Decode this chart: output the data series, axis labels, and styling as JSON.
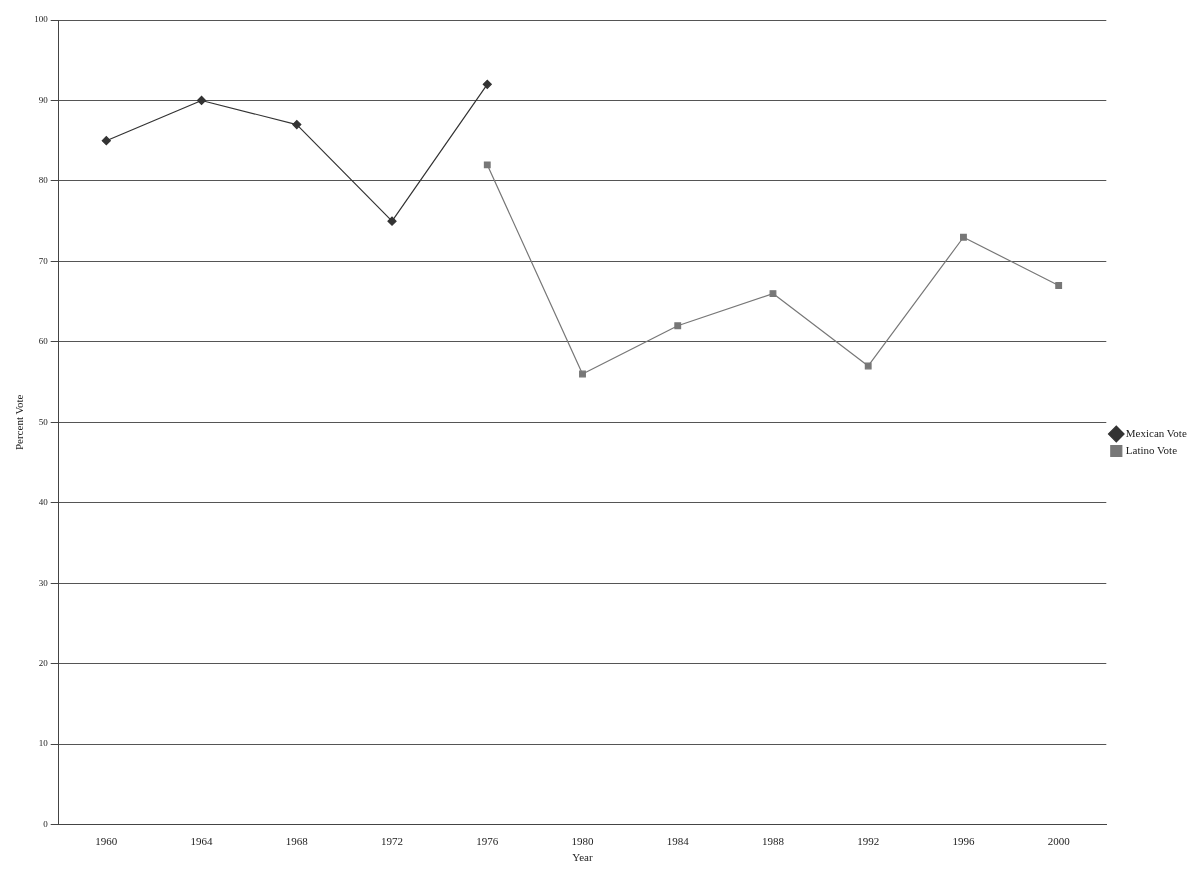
{
  "chart_data": {
    "type": "line",
    "xlabel": "Year",
    "ylabel": "Percent Vote",
    "categories": [
      "1960",
      "1964",
      "1968",
      "1972",
      "1976",
      "1980",
      "1984",
      "1988",
      "1992",
      "1996",
      "2000"
    ],
    "series": [
      {
        "name": "Mexican Vote",
        "color": "#333333",
        "marker": "diamond",
        "values": [
          85,
          90,
          87,
          75,
          92,
          null,
          null,
          null,
          null,
          null,
          null
        ]
      },
      {
        "name": "Latino Vote",
        "color": "#777777",
        "marker": "square",
        "values": [
          null,
          null,
          null,
          null,
          82,
          56,
          62,
          66,
          57,
          73,
          67
        ]
      }
    ],
    "ylim": [
      0,
      100
    ],
    "yticks": [
      0,
      10,
      20,
      30,
      40,
      50,
      60,
      70,
      80,
      90,
      100
    ],
    "grid": "y",
    "legend": "right",
    "line_style": "solid"
  }
}
